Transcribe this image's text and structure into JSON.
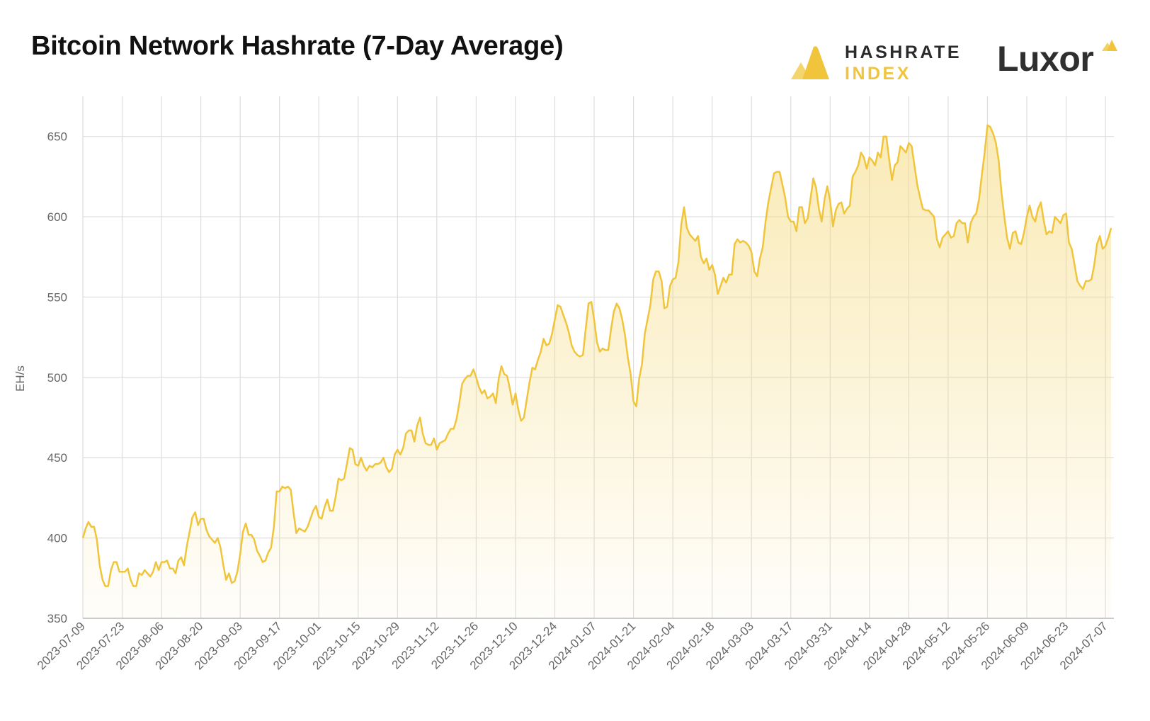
{
  "header": {
    "title": "Bitcoin Network Hashrate (7-Day Average)"
  },
  "logos": {
    "hashrate_index": {
      "line1": "HASHRATE",
      "line2": "INDEX",
      "icon": "hashrate-index-logo-icon"
    },
    "luxor": {
      "word": "Luxor",
      "icon": "luxor-mark-icon"
    }
  },
  "colors": {
    "line": "#f0c53c",
    "fill": "#f5d97a",
    "grid": "#dddddd",
    "text": "#666666"
  },
  "chart_data": {
    "type": "area",
    "ylabel": "EH/s",
    "ylim": [
      350,
      675
    ],
    "yticks": [
      350,
      400,
      450,
      500,
      550,
      600,
      650
    ],
    "xlim": [
      "2023-07-09",
      "2024-07-10"
    ],
    "xticks": [
      "2023-07-09",
      "2023-07-23",
      "2023-08-06",
      "2023-08-20",
      "2023-09-03",
      "2023-09-17",
      "2023-10-01",
      "2023-10-15",
      "2023-10-29",
      "2023-11-12",
      "2023-11-26",
      "2023-12-10",
      "2023-12-24",
      "2024-01-07",
      "2024-01-21",
      "2024-02-04",
      "2024-02-18",
      "2024-03-03",
      "2024-03-17",
      "2024-03-31",
      "2024-04-14",
      "2024-04-28",
      "2024-05-12",
      "2024-05-26",
      "2024-06-09",
      "2024-06-23",
      "2024-07-07"
    ],
    "grid": true,
    "legend": "none",
    "series": [
      {
        "x_start": "2023-07-09",
        "step_days": 1,
        "values": [
          400,
          406,
          410,
          407,
          407,
          399,
          383,
          374,
          370,
          370,
          380,
          385,
          385,
          379,
          379,
          379,
          381,
          374,
          370,
          370,
          378,
          377,
          380,
          378,
          376,
          379,
          385,
          380,
          385,
          385,
          386,
          381,
          381,
          378,
          386,
          388,
          383,
          395,
          404,
          413,
          416,
          408,
          412,
          412,
          405,
          401,
          399,
          397,
          400,
          394,
          383,
          374,
          378,
          372,
          373,
          379,
          390,
          404,
          409,
          402,
          402,
          399,
          392,
          389,
          385,
          386,
          391,
          394,
          407,
          429,
          429,
          432,
          431,
          432,
          430,
          416,
          403,
          406,
          405,
          404,
          407,
          412,
          417,
          420,
          413,
          412,
          419,
          424,
          417,
          417,
          426,
          437,
          436,
          437,
          446,
          456,
          455,
          446,
          445,
          450,
          445,
          442,
          445,
          444,
          446,
          446,
          447,
          450,
          444,
          441,
          443,
          452,
          455,
          452,
          456,
          465,
          467,
          467,
          460,
          470,
          475,
          465,
          459,
          458,
          458,
          462,
          455,
          459,
          460,
          461,
          465,
          468,
          468,
          474,
          484,
          496,
          499,
          501,
          501,
          505,
          500,
          494,
          490,
          492,
          487,
          488,
          490,
          484,
          499,
          507,
          502,
          501,
          493,
          483,
          490,
          480,
          473,
          475,
          486,
          497,
          506,
          505,
          511,
          516,
          524,
          520,
          521,
          527,
          536,
          545,
          544,
          539,
          534,
          528,
          520,
          516,
          514,
          513,
          514,
          530,
          546,
          547,
          536,
          522,
          516,
          518,
          517,
          517,
          530,
          541,
          546,
          543,
          536,
          526,
          512,
          502,
          485,
          482,
          499,
          508,
          527,
          536,
          545,
          561,
          566,
          566,
          560,
          543,
          544,
          557,
          561,
          562,
          572,
          595,
          606,
          593,
          589,
          587,
          585,
          588,
          575,
          571,
          574,
          567,
          570,
          564,
          552,
          557,
          562,
          559,
          564,
          564,
          583,
          586,
          584,
          585,
          584,
          582,
          578,
          566,
          563,
          574,
          581,
          597,
          609,
          618,
          627,
          628,
          628,
          620,
          612,
          600,
          597,
          597,
          591,
          606,
          606,
          596,
          599,
          611,
          624,
          618,
          605,
          597,
          611,
          619,
          610,
          594,
          604,
          608,
          609,
          602,
          605,
          607,
          625,
          628,
          632,
          640,
          637,
          630,
          637,
          635,
          632,
          640,
          637,
          650,
          650,
          636,
          623,
          632,
          634,
          644,
          642,
          640,
          646,
          644,
          632,
          620,
          612,
          605,
          604,
          604,
          602,
          600,
          586,
          581,
          587,
          589,
          591,
          587,
          588,
          596,
          598,
          596,
          596,
          584,
          596,
          600,
          602,
          611,
          626,
          640,
          657,
          656,
          652,
          646,
          635,
          615,
          600,
          587,
          580,
          590,
          591,
          584,
          583,
          590,
          600,
          607,
          600,
          597,
          605,
          609,
          598,
          589,
          591,
          590,
          600,
          598,
          596,
          601,
          602,
          584,
          580,
          570,
          560,
          557,
          555,
          560,
          560,
          561,
          570,
          583,
          588,
          580,
          582,
          587,
          593
        ]
      }
    ]
  }
}
